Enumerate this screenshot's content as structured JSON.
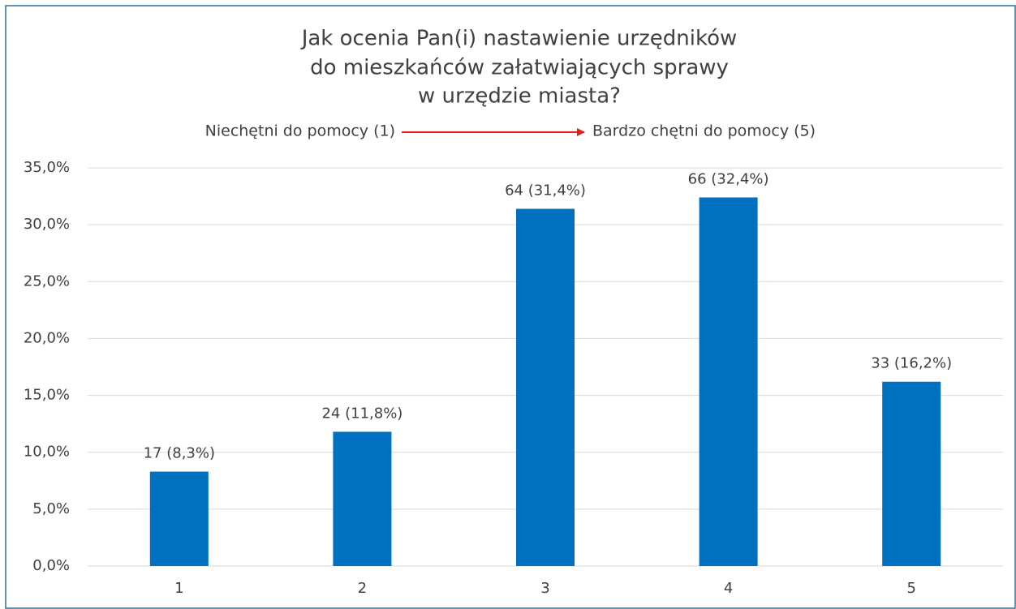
{
  "chart_data": {
    "type": "bar",
    "title": [
      "Jak ocenia Pan(i) nastawienie urzędników",
      "do mieszkańców załatwiających sprawy",
      "w urzędzie miasta?"
    ],
    "annotations": [
      "Niechętni do pomocy (1)",
      "Bardzo chętni do pomocy (5)"
    ],
    "categories": [
      "1",
      "2",
      "3",
      "4",
      "5"
    ],
    "values": [
      8.3,
      11.8,
      31.4,
      32.4,
      16.2
    ],
    "value_labels": [
      "17 (8,3%)",
      "24 (11,8%)",
      "64 (31,4%)",
      "66 (32,4%)",
      "33 (16,2%)"
    ],
    "color": "#0070c0",
    "ylim": [
      0,
      35
    ],
    "yticks": [
      {
        "value": 0,
        "label": "0,0%"
      },
      {
        "value": 5,
        "label": "5,0%"
      },
      {
        "value": 10,
        "label": "10,0%"
      },
      {
        "value": 15,
        "label": "15,0%"
      },
      {
        "value": 20,
        "label": "20,0%"
      },
      {
        "value": 25,
        "label": "25,0%"
      },
      {
        "value": 30,
        "label": "30,0%"
      },
      {
        "value": 35,
        "label": "35,0%"
      }
    ],
    "grid": true
  }
}
